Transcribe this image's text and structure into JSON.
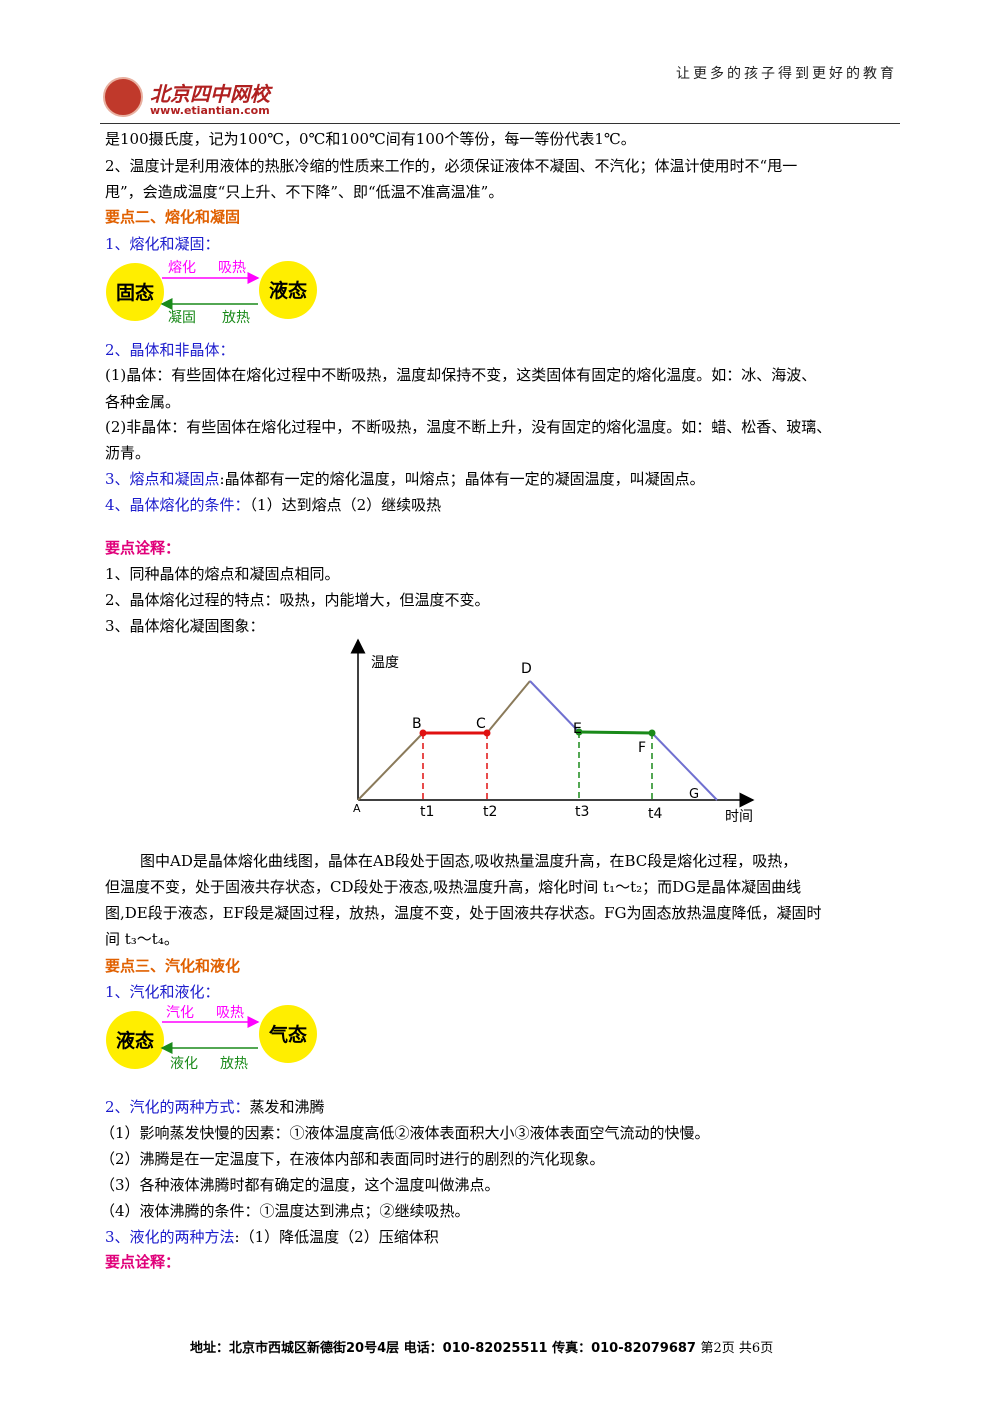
{
  "header": {
    "slogan": "让更多的孩子得到更好的教育",
    "logo_name": "北京四中网校",
    "logo_url": "www.etiantian.com"
  },
  "lines": {
    "l1": "是100摄氏度，记为100℃，0℃和100℃间有100个等份，每一等份代表1℃。",
    "l2": "2、温度计是利用液体的热胀冷缩的性质来工作的，必须保证液体不凝固、不汽化；体温计使用时不“甩一",
    "l3": "甩”，会造成温度“只上升、不下降”、即“低温不准高温准”。",
    "sec2": "要点二、熔化和凝固",
    "sub1": "1、熔化和凝固：",
    "sub2": "2、晶体和非晶体：",
    "p1a": "(1)晶体：有些固体在熔化过程中不断吸热，温度却保持不变，这类固体有固定的熔化温度。如：冰、海波、",
    "p1b": "各种金属。",
    "p2a": "(2)非晶体：有些固体在熔化过程中，不断吸热，温度不断上升，没有固定的熔化温度。如：蜡、松香、玻璃、",
    "p2b": "沥青。",
    "sub3_label": "3、熔点和凝固点",
    "sub3_text": ":晶体都有一定的熔化温度，叫熔点；晶体有一定的凝固温度，叫凝固点。",
    "sub4_label": "4、晶体熔化的条件：",
    "sub4_text": "（1）达到熔点（2）继续吸热",
    "note1": "要点诠释：",
    "n1": "1、同种晶体的熔点和凝固点相同。",
    "n2": "2、晶体熔化过程的特点：吸热，内能增大，但温度不变。",
    "n3": "3、晶体熔化凝固图象：",
    "d1": "图中AD是晶体熔化曲线图，晶体在AB段处于固态,吸收热量温度升高，在BC段是熔化过程，吸热，",
    "d2": "但温度不变，处于固液共存状态，CD段处于液态,吸热温度升高，熔化时间 t₁～t₂；而DG是晶体凝固曲线",
    "d3": "图,DE段于液态，EF段是凝固过程，放热，温度不变，处于固液共存状态。FG为固态放热温度降低，凝固时",
    "d4": "间 t₃～t₄。",
    "sec3": "要点三、汽化和液化",
    "s3sub1": "1、汽化和液化：",
    "s3sub2_label": "2、汽化的两种方式：",
    "s3sub2_text": "蒸发和沸腾",
    "e1": "（1）影响蒸发快慢的因素：①液体温度高低②液体表面积大小③液体表面空气流动的快慢。",
    "e2": "（2）沸腾是在一定温度下，在液体内部和表面同时进行的剧烈的汽化现象。",
    "e3": "（3）各种液体沸腾时都有确定的温度，这个温度叫做沸点。",
    "e4": "（4）液体沸腾的条件：①温度达到沸点；②继续吸热。",
    "s3sub3_label": "3、液化的两种方法",
    "s3sub3_text": ":（1）降低温度（2）压缩体积",
    "note2": "要点诠释："
  },
  "diagram1": {
    "left": "固态",
    "right": "液态",
    "top1": "熔化",
    "top2": "吸热",
    "bot1": "凝固",
    "bot2": "放热"
  },
  "diagram2": {
    "left": "液态",
    "right": "气态",
    "top1": "汽化",
    "top2": "吸热",
    "bot1": "液化",
    "bot2": "放热"
  },
  "graph": {
    "ylabel": "温度",
    "xlabel": "时间",
    "points": {
      "A": "A",
      "B": "B",
      "C": "C",
      "D": "D",
      "E": "E",
      "F": "F",
      "G": "G"
    },
    "ticks": [
      "t1",
      "t2",
      "t3",
      "t4"
    ]
  },
  "footer": {
    "address": "地址：北京市西城区新德街20号4层  电话：010-82025511  传真：010-82079687",
    "page": "第2页  共6页"
  },
  "colors": {
    "heading": "#e06000",
    "subheading": "#1c1ccc",
    "note": "#e0007a",
    "melt_arrow": "#ff00ff",
    "solidify_arrow": "#1a8a1a",
    "circle": "#ffee00"
  }
}
